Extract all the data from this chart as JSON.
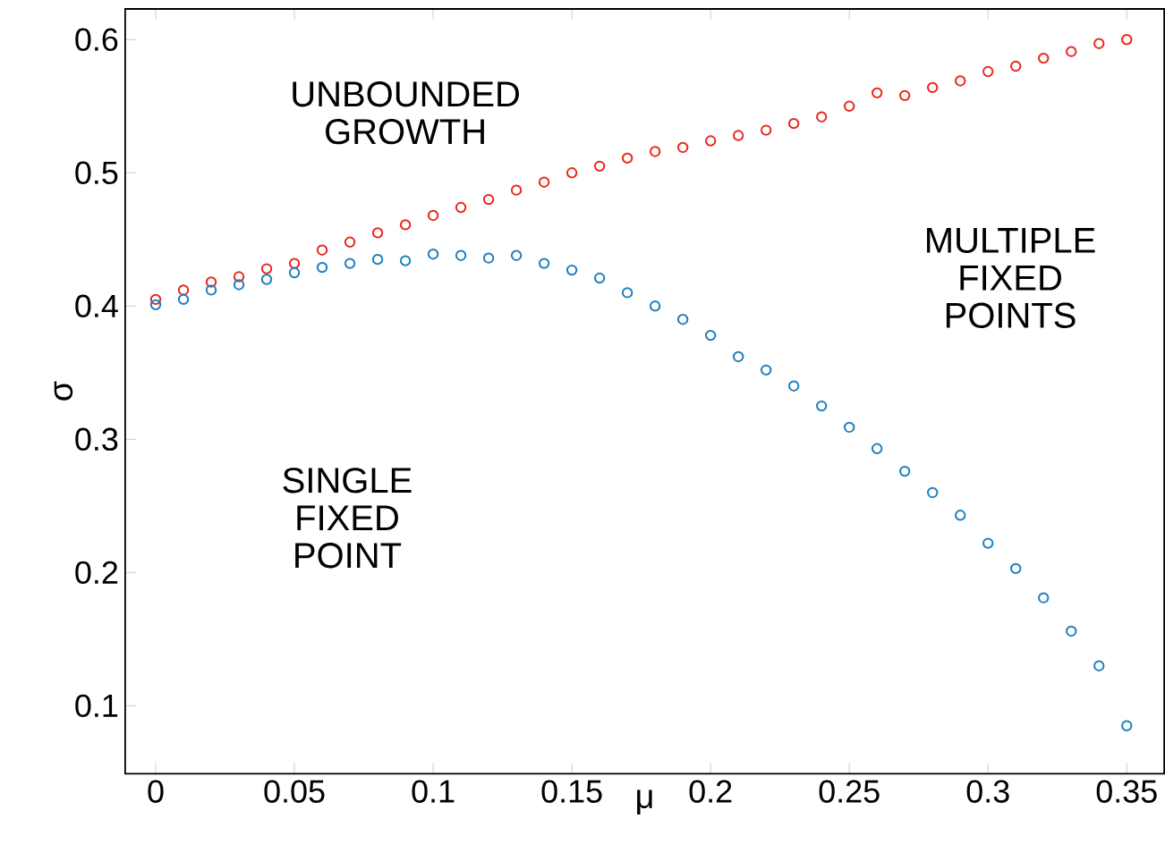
{
  "chart_data": {
    "type": "scatter",
    "xlabel": "μ",
    "ylabel": "σ",
    "xlim": [
      -0.011,
      0.3635
    ],
    "ylim": [
      0.049,
      0.623
    ],
    "xticks": [
      0,
      0.05,
      0.1,
      0.15,
      0.2,
      0.25,
      0.3,
      0.35
    ],
    "yticks": [
      0.1,
      0.2,
      0.3,
      0.4,
      0.5,
      0.6
    ],
    "marker": "circle",
    "annotations": [
      "UNBOUNDED GROWTH",
      "MULTIPLE FIXED POINTS",
      "SINGLE FIXED POINT"
    ],
    "series": [
      {
        "color": "#e8291c",
        "x": [
          0,
          0.01,
          0.02,
          0.03,
          0.04,
          0.05,
          0.06,
          0.07,
          0.08,
          0.09,
          0.1,
          0.11,
          0.12,
          0.13,
          0.14,
          0.15,
          0.16,
          0.17,
          0.18,
          0.19,
          0.2,
          0.21,
          0.22,
          0.23,
          0.24,
          0.25,
          0.26,
          0.27,
          0.28,
          0.29,
          0.3,
          0.31,
          0.32,
          0.33,
          0.34,
          0.35
        ],
        "values": [
          0.405,
          0.412,
          0.418,
          0.422,
          0.428,
          0.432,
          0.442,
          0.448,
          0.455,
          0.461,
          0.468,
          0.474,
          0.48,
          0.487,
          0.493,
          0.5,
          0.505,
          0.511,
          0.516,
          0.519,
          0.524,
          0.528,
          0.532,
          0.537,
          0.542,
          0.55,
          0.56,
          0.558,
          0.564,
          0.569,
          0.576,
          0.58,
          0.586,
          0.591,
          0.597,
          0.6
        ]
      },
      {
        "color": "#1f7fc0",
        "x": [
          0,
          0.01,
          0.02,
          0.03,
          0.04,
          0.05,
          0.06,
          0.07,
          0.08,
          0.09,
          0.1,
          0.11,
          0.12,
          0.13,
          0.14,
          0.15,
          0.16,
          0.17,
          0.18,
          0.19,
          0.2,
          0.21,
          0.22,
          0.23,
          0.24,
          0.25,
          0.26,
          0.27,
          0.28,
          0.29,
          0.3,
          0.31,
          0.32,
          0.33,
          0.34,
          0.35
        ],
        "values": [
          0.401,
          0.405,
          0.412,
          0.416,
          0.42,
          0.425,
          0.429,
          0.432,
          0.435,
          0.434,
          0.439,
          0.438,
          0.436,
          0.438,
          0.432,
          0.427,
          0.421,
          0.41,
          0.4,
          0.39,
          0.378,
          0.362,
          0.352,
          0.34,
          0.325,
          0.309,
          0.293,
          0.276,
          0.26,
          0.243,
          0.222,
          0.203,
          0.181,
          0.156,
          0.13,
          0.085
        ]
      }
    ]
  }
}
